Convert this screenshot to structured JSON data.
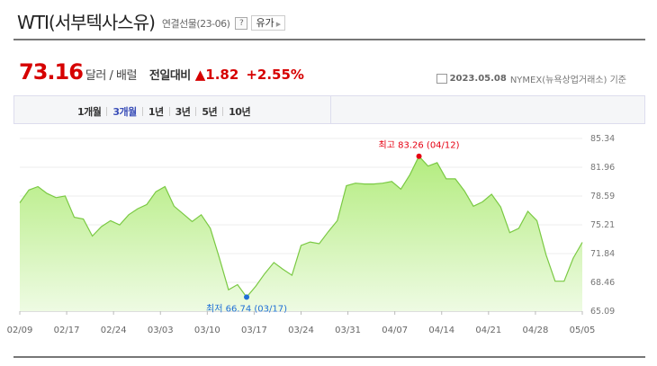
{
  "header": {
    "title": "WTI(서부텍사스유)",
    "subtitle": "연결선물(23-06)",
    "help_label": "?",
    "dropdown_label": "유가"
  },
  "price": {
    "value": "73.16",
    "unit": "달러 / 배럴",
    "change_label": "전일대비",
    "change": "▲1.82",
    "change_pct": "+2.55%",
    "date": "2023.05.08",
    "source": "NYMEX(뉴욕상업거래소) 기준"
  },
  "tabs": [
    {
      "label": "1개월",
      "active": false
    },
    {
      "label": "3개월",
      "active": true
    },
    {
      "label": "1년",
      "active": false
    },
    {
      "label": "3년",
      "active": false
    },
    {
      "label": "5년",
      "active": false
    },
    {
      "label": "10년",
      "active": false
    }
  ],
  "colors": {
    "up": "#d60000",
    "line": "#7ac943",
    "fill_top": "#b3ec7e",
    "fill_bottom": "#eefbe3",
    "high": "#e60012",
    "low": "#1f6fd6"
  },
  "chart_data": {
    "type": "area",
    "ylim": [
      65.09,
      85.34
    ],
    "yticks": [
      "85.34",
      "81.96",
      "78.59",
      "75.21",
      "71.84",
      "68.46",
      "65.09"
    ],
    "xticks": [
      "02/09",
      "02/17",
      "02/24",
      "03/03",
      "03/10",
      "03/17",
      "03/24",
      "03/31",
      "04/07",
      "04/14",
      "04/21",
      "04/28",
      "05/05"
    ],
    "series": [
      {
        "values": [
          77.8,
          79.3,
          79.7,
          78.9,
          78.4,
          78.6,
          76.1,
          75.9,
          73.9,
          75.0,
          75.7,
          75.2,
          76.4,
          77.1,
          77.6,
          79.1,
          79.7,
          77.4,
          76.5,
          75.6,
          76.4,
          74.8,
          71.3,
          67.6,
          68.2,
          66.74,
          68.0,
          69.5,
          70.8,
          70.0,
          69.3,
          72.8,
          73.2,
          73.0,
          74.4,
          75.7,
          79.8,
          80.1,
          80.0,
          80.0,
          80.1,
          80.3,
          79.4,
          81.1,
          83.26,
          82.1,
          82.5,
          80.6,
          80.6,
          79.2,
          77.4,
          77.9,
          78.8,
          77.3,
          74.3,
          74.8,
          76.8,
          75.7,
          71.7,
          68.6,
          68.6,
          71.3,
          73.16
        ]
      }
    ],
    "annotations": {
      "high": {
        "label": "최고 83.26 (04/12)",
        "value": 83.26
      },
      "low": {
        "label": "최저 66.74 (03/17)",
        "value": 66.74
      }
    }
  }
}
